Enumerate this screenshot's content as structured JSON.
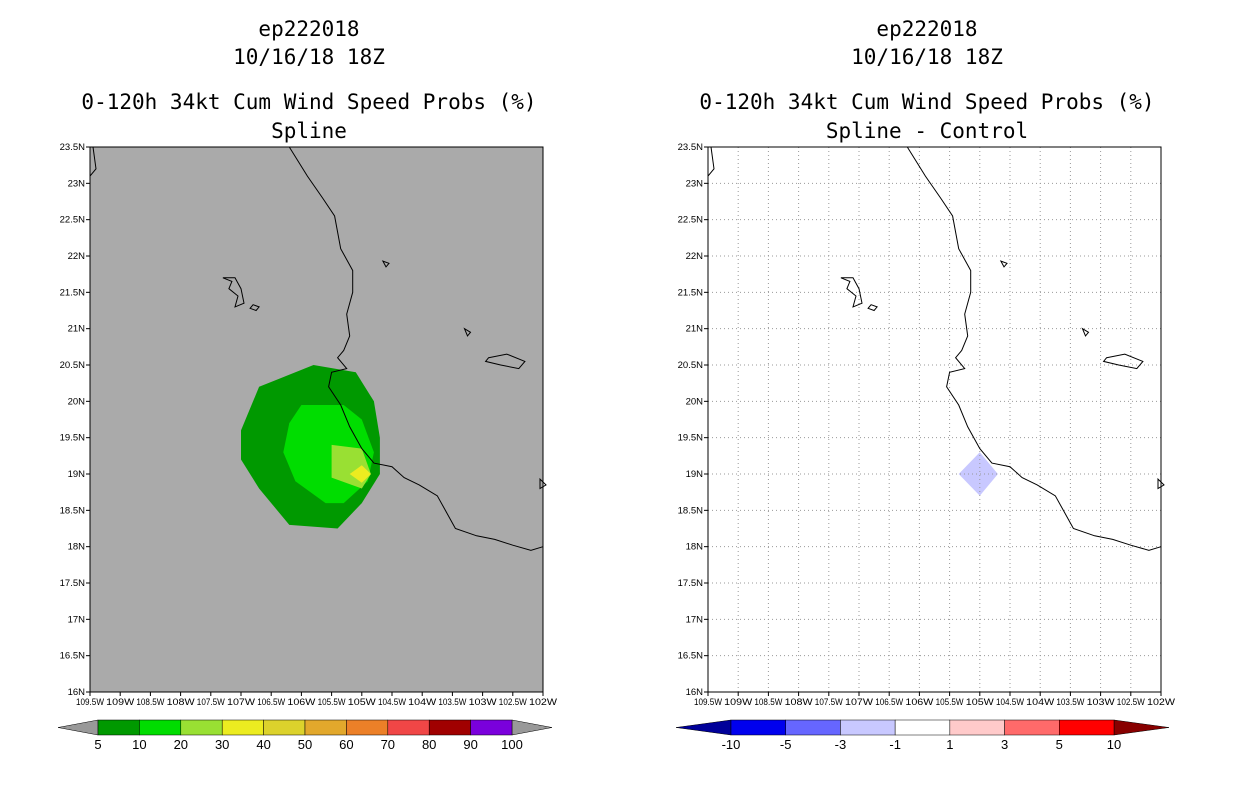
{
  "colors": {
    "background_gray": "#aaaaaa",
    "coast": "#000000",
    "grid": "#999999"
  },
  "chart_data": [
    {
      "type": "heatmap",
      "storm_id": "ep222018",
      "datetime": "10/16/18 18Z",
      "title": "0-120h 34kt Cum Wind Speed Probs (%)",
      "subtitle": "Spline",
      "xlim": [
        -109.5,
        -102
      ],
      "ylim": [
        16,
        23.5
      ],
      "x_tick_labels": [
        "109.5W",
        "109W",
        "108.5W",
        "108W",
        "107.5W",
        "107W",
        "106.5W",
        "106W",
        "105.5W",
        "105W",
        "104.5W",
        "104W",
        "103.5W",
        "103W",
        "102.5W",
        "102W"
      ],
      "y_tick_labels": [
        "16N",
        "16.5N",
        "17N",
        "17.5N",
        "18N",
        "18.5N",
        "19N",
        "19.5N",
        "20N",
        "20.5N",
        "21N",
        "21.5N",
        "22N",
        "22.5N",
        "23N",
        "23.5N"
      ],
      "grid": false,
      "colorbar": {
        "labels": [
          "5",
          "10",
          "20",
          "30",
          "40",
          "50",
          "60",
          "70",
          "80",
          "90",
          "100"
        ],
        "colors": [
          "#009900",
          "#00dd00",
          "#99e033",
          "#ecec20",
          "#dcd22c",
          "#e2a82c",
          "#ec8028",
          "#f04646",
          "#a00000",
          "#7a00dc"
        ],
        "under_color": "#999999",
        "over_color": "#999999"
      },
      "contours": [
        {
          "level": 5,
          "color": "#009900",
          "polygon": [
            [
              -105.8,
              20.5
            ],
            [
              -105.1,
              20.4
            ],
            [
              -104.8,
              20.0
            ],
            [
              -104.7,
              19.5
            ],
            [
              -104.7,
              19.0
            ],
            [
              -105.0,
              18.6
            ],
            [
              -105.4,
              18.25
            ],
            [
              -106.2,
              18.3
            ],
            [
              -106.7,
              18.8
            ],
            [
              -107.0,
              19.2
            ],
            [
              -107.0,
              19.6
            ],
            [
              -106.7,
              20.2
            ]
          ]
        },
        {
          "level": 10,
          "color": "#00dd00",
          "polygon": [
            [
              -106.0,
              19.95
            ],
            [
              -105.3,
              19.95
            ],
            [
              -105.0,
              19.75
            ],
            [
              -104.8,
              19.3
            ],
            [
              -104.9,
              18.9
            ],
            [
              -105.3,
              18.6
            ],
            [
              -105.6,
              18.6
            ],
            [
              -106.1,
              18.9
            ],
            [
              -106.3,
              19.3
            ],
            [
              -106.2,
              19.7
            ]
          ]
        },
        {
          "level": 20,
          "color": "#99e033",
          "polygon": [
            [
              -105.5,
              19.4
            ],
            [
              -105.0,
              19.35
            ],
            [
              -104.85,
              19.0
            ],
            [
              -105.0,
              18.8
            ],
            [
              -105.5,
              18.95
            ]
          ]
        },
        {
          "level": 30,
          "color": "#ecec20",
          "polygon": [
            [
              -105.0,
              19.12
            ],
            [
              -104.85,
              19.0
            ],
            [
              -105.0,
              18.88
            ],
            [
              -105.2,
              19.0
            ]
          ]
        }
      ]
    },
    {
      "type": "heatmap",
      "storm_id": "ep222018",
      "datetime": "10/16/18 18Z",
      "title": "0-120h 34kt Cum Wind Speed Probs (%)",
      "subtitle": "Spline - Control",
      "xlim": [
        -109.5,
        -102
      ],
      "ylim": [
        16,
        23.5
      ],
      "x_tick_labels": [
        "109.5W",
        "109W",
        "108.5W",
        "108W",
        "107.5W",
        "107W",
        "106.5W",
        "106W",
        "105.5W",
        "105W",
        "104.5W",
        "104W",
        "103.5W",
        "103W",
        "102.5W",
        "102W"
      ],
      "y_tick_labels": [
        "16N",
        "16.5N",
        "17N",
        "17.5N",
        "18N",
        "18.5N",
        "19N",
        "19.5N",
        "20N",
        "20.5N",
        "21N",
        "21.5N",
        "22N",
        "22.5N",
        "23N",
        "23.5N"
      ],
      "grid": true,
      "colorbar": {
        "labels": [
          "-10",
          "-5",
          "-3",
          "-1",
          "1",
          "3",
          "5",
          "10"
        ],
        "colors": [
          "#0000ee",
          "#6666ff",
          "#c8c8ff",
          "#ffffff",
          "#ffcaca",
          "#ff6a6a",
          "#ff0000"
        ],
        "under_color": "#000099",
        "over_color": "#880000"
      },
      "contours": [
        {
          "level": -3,
          "color": "#c8c8ff",
          "polygon": [
            [
              -105.0,
              19.3
            ],
            [
              -104.7,
              19.0
            ],
            [
              -105.0,
              18.7
            ],
            [
              -105.35,
              19.0
            ]
          ]
        }
      ]
    }
  ],
  "coastline": [
    [
      -106.2,
      23.5
    ],
    [
      -105.9,
      23.1
    ],
    [
      -105.65,
      22.8
    ],
    [
      -105.45,
      22.55
    ],
    [
      -105.35,
      22.1
    ],
    [
      -105.15,
      21.8
    ],
    [
      -105.15,
      21.5
    ],
    [
      -105.25,
      21.2
    ],
    [
      -105.2,
      20.9
    ],
    [
      -105.3,
      20.7
    ],
    [
      -105.4,
      20.6
    ],
    [
      -105.25,
      20.45
    ],
    [
      -105.5,
      20.4
    ],
    [
      -105.55,
      20.2
    ],
    [
      -105.35,
      19.95
    ],
    [
      -105.2,
      19.65
    ],
    [
      -105.0,
      19.35
    ],
    [
      -104.8,
      19.15
    ],
    [
      -104.5,
      19.1
    ],
    [
      -104.3,
      18.95
    ],
    [
      -104.05,
      18.85
    ],
    [
      -103.75,
      18.7
    ],
    [
      -103.55,
      18.4
    ],
    [
      -103.45,
      18.25
    ],
    [
      -103.1,
      18.15
    ],
    [
      -102.8,
      18.1
    ],
    [
      -102.5,
      18.02
    ],
    [
      -102.2,
      17.95
    ],
    [
      -102.0,
      18.0
    ]
  ],
  "coast_top_left": [
    [
      -109.45,
      23.5
    ],
    [
      -109.4,
      23.2
    ],
    [
      -109.5,
      23.1
    ]
  ],
  "islands": [
    [
      [
        -107.3,
        21.7
      ],
      [
        -107.15,
        21.65
      ],
      [
        -107.2,
        21.55
      ],
      [
        -107.05,
        21.45
      ],
      [
        -107.1,
        21.3
      ],
      [
        -106.95,
        21.35
      ],
      [
        -107.0,
        21.55
      ],
      [
        -107.1,
        21.7
      ]
    ],
    [
      [
        -106.8,
        21.33
      ],
      [
        -106.7,
        21.3
      ],
      [
        -106.75,
        21.25
      ],
      [
        -106.85,
        21.28
      ]
    ],
    [
      [
        -104.65,
        21.93
      ],
      [
        -104.55,
        21.9
      ],
      [
        -104.6,
        21.85
      ]
    ],
    [
      [
        -103.3,
        21.0
      ],
      [
        -103.2,
        20.95
      ],
      [
        -103.25,
        20.9
      ]
    ],
    [
      [
        -102.9,
        20.6
      ],
      [
        -102.6,
        20.65
      ],
      [
        -102.3,
        20.55
      ],
      [
        -102.4,
        20.45
      ],
      [
        -102.7,
        20.5
      ],
      [
        -102.95,
        20.55
      ]
    ],
    [
      [
        -102.05,
        18.93
      ],
      [
        -101.95,
        18.85
      ],
      [
        -102.05,
        18.8
      ]
    ]
  ]
}
